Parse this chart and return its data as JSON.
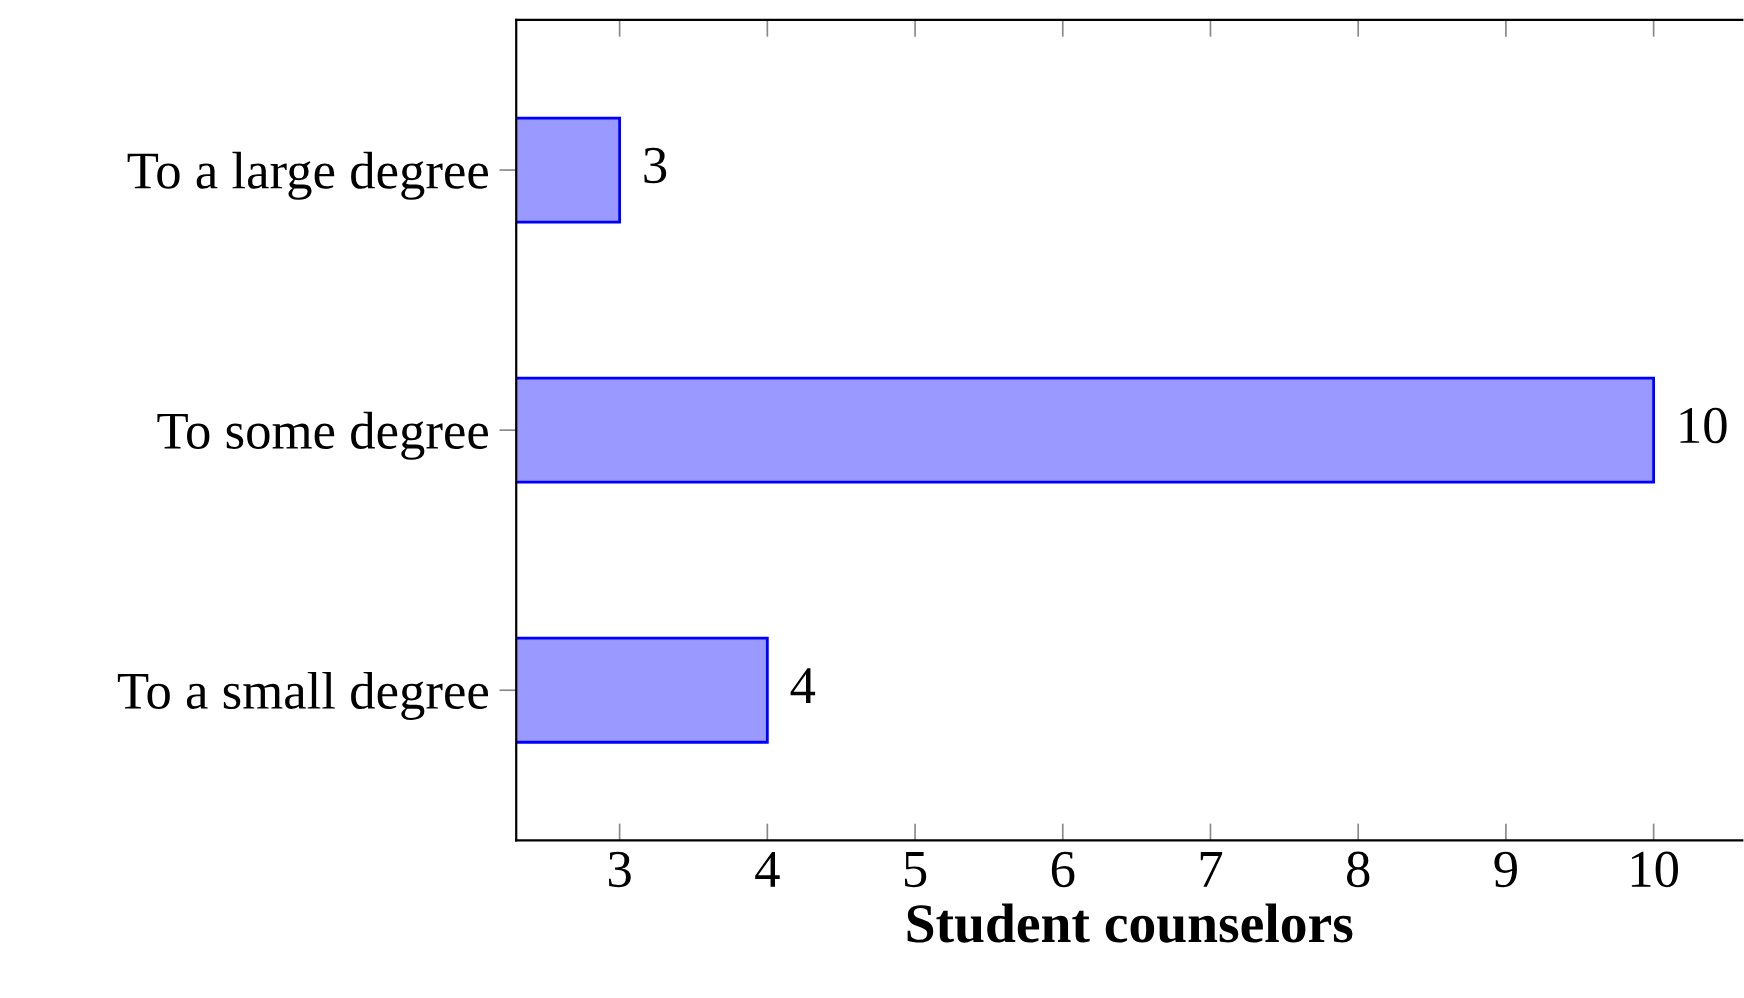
{
  "chart_data": {
    "type": "bar",
    "orientation": "horizontal",
    "xlabel": "Student counselors",
    "categories": [
      "To a large degree",
      "To some degree",
      "To a small degree"
    ],
    "values": [
      3,
      10,
      4
    ],
    "color": "#9999ff",
    "xlim": [
      2.3,
      10.6
    ],
    "xticks": [
      3,
      4,
      5,
      6,
      7,
      8,
      9,
      10
    ],
    "data_labels": true,
    "grid": false
  }
}
